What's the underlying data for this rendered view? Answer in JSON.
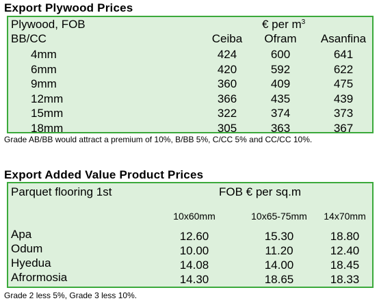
{
  "plywood": {
    "heading": "Export Plywood Prices",
    "header_label": "Plywood, FOB",
    "currency_label": "€ per m",
    "currency_sup": "3",
    "grade_label": "BB/CC",
    "columns": [
      "Ceiba",
      "Ofram",
      "Asanfina"
    ],
    "rows": [
      {
        "size": "4mm",
        "values": [
          "424",
          "600",
          "641"
        ]
      },
      {
        "size": "6mm",
        "values": [
          "420",
          "592",
          "622"
        ]
      },
      {
        "size": "9mm",
        "values": [
          "360",
          "409",
          "475"
        ]
      },
      {
        "size": "12mm",
        "values": [
          "366",
          "435",
          "439"
        ]
      },
      {
        "size": "15mm",
        "values": [
          "322",
          "374",
          "373"
        ]
      },
      {
        "size": "18mm",
        "values": [
          "305",
          "363",
          "367"
        ]
      }
    ],
    "note": "Grade AB/BB would attract a premium of 10%, B/BB 5%, C/CC 5% and CC/CC 10%."
  },
  "value_added": {
    "heading": "Export Added Value Product Prices",
    "header_label": "Parquet flooring 1st",
    "currency_label": "FOB € per sq.m",
    "columns": [
      "10x60mm",
      "10x65-75mm",
      "14x70mm"
    ],
    "rows": [
      {
        "species": "Apa",
        "values": [
          "12.60",
          "15.30",
          "18.80"
        ]
      },
      {
        "species": "Odum",
        "values": [
          "10.00",
          "11.20",
          "12.40"
        ]
      },
      {
        "species": "Hyedua",
        "values": [
          "14.08",
          "14.00",
          "18.45"
        ]
      },
      {
        "species": "Afrormosia",
        "values": [
          "14.30",
          "18.65",
          "18.33"
        ]
      }
    ],
    "note": "Grade 2 less 5%, Grade 3 less 10%."
  }
}
